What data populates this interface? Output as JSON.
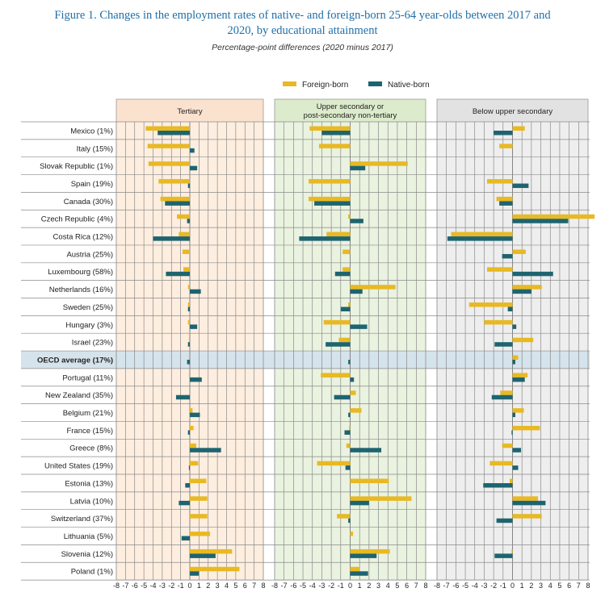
{
  "figure": {
    "title_line1": "Figure 1. Changes in the employment rates of native- and foreign-born 25-64 year-olds between 2017 and",
    "title_line2": "2020, by educational attainment",
    "subtitle": "Percentage-point differences (2020 minus 2017)"
  },
  "colors": {
    "foreign": "#e8b923",
    "native": "#1e6470",
    "panel_tertiary": "#fdeee0",
    "panel_upper": "#eaf2e0",
    "panel_below": "#eeeeee",
    "header_tertiary": "#fbe2cf",
    "header_upper": "#dcebcb",
    "header_below": "#e2e2e2",
    "oecd_row": "#d5e3ec"
  },
  "chart_data": {
    "type": "bar",
    "orientation": "horizontal",
    "title": "Figure 1. Changes in the employment rates of native- and foreign-born 25-64 year-olds between 2017 and 2020, by educational attainment",
    "subtitle": "Percentage-point differences (2020 minus 2017)",
    "legend": [
      "Foreign-born",
      "Native-born"
    ],
    "legend_position": "top-right",
    "xlim": [
      -8,
      8
    ],
    "x_ticks": [
      "-8",
      "-7",
      "-6",
      "-5",
      "-4",
      "-3",
      "-2",
      "-1",
      "0",
      "1",
      "2",
      "3",
      "4",
      "5",
      "6",
      "7",
      "8"
    ],
    "categories": [
      "Mexico (1%)",
      "Italy (15%)",
      "Slovak Republic (1%)",
      "Spain (19%)",
      "Canada (30%)",
      "Czech Republic (4%)",
      "Costa Rica (12%)",
      "Austria (25%)",
      "Luxembourg (58%)",
      "Netherlands (16%)",
      "Sweden (25%)",
      "Hungary (3%)",
      "Israel (23%)",
      "OECD average (17%)",
      "Portugal (11%)",
      "New Zealand (35%)",
      "Belgium (21%)",
      "France (15%)",
      "Greece (8%)",
      "United States (19%)",
      "Estonia (13%)",
      "Latvia (10%)",
      "Switzerland (37%)",
      "Lithuania (5%)",
      "Slovenia (12%)",
      "Poland (1%)"
    ],
    "highlight_category": "OECD average (17%)",
    "panels": [
      {
        "name": "Tertiary",
        "foreign": [
          -4.8,
          -4.6,
          -4.5,
          -3.4,
          -3.2,
          -1.4,
          -1.2,
          -0.8,
          -0.7,
          -0.2,
          -0.2,
          -0.2,
          -0.1,
          -0.1,
          -0.1,
          0.0,
          0.3,
          0.4,
          0.7,
          0.9,
          1.8,
          1.9,
          1.9,
          2.2,
          4.6,
          5.4
        ],
        "native": [
          -3.5,
          0.5,
          0.8,
          -0.2,
          -2.7,
          -0.3,
          -4.0,
          0.0,
          -2.6,
          1.2,
          -0.2,
          0.8,
          -0.2,
          -0.3,
          1.3,
          -1.5,
          1.1,
          -0.2,
          3.4,
          -0.1,
          -0.5,
          -1.2,
          0.0,
          -0.9,
          2.8,
          1.0
        ]
      },
      {
        "name": "Upper secondary or post-secondary non-tertiary",
        "name_line1": "Upper secondary or",
        "name_line2": "post-secondary non-tertiary",
        "foreign": [
          -4.3,
          -3.3,
          6.1,
          -4.4,
          -4.4,
          -0.2,
          -2.5,
          -0.8,
          -0.8,
          4.8,
          -0.2,
          -2.8,
          -1.2,
          0.0,
          -3.1,
          0.6,
          1.2,
          -0.1,
          -0.4,
          -3.5,
          4.1,
          6.5,
          -1.4,
          0.3,
          4.2,
          1.0
        ],
        "native": [
          -3.0,
          0.0,
          1.6,
          0.0,
          -3.8,
          1.4,
          -5.4,
          0.0,
          -1.6,
          1.3,
          -1.0,
          1.8,
          -2.6,
          -0.2,
          0.4,
          -1.7,
          -0.2,
          -0.6,
          3.3,
          -0.5,
          0.0,
          2.0,
          -0.2,
          0.0,
          2.8,
          1.9
        ]
      },
      {
        "name": "Below upper secondary",
        "foreign": [
          1.3,
          -1.4,
          0.0,
          -2.7,
          -1.7,
          8.7,
          -6.5,
          1.4,
          -2.7,
          3.1,
          -4.6,
          -3.0,
          2.2,
          0.6,
          1.6,
          -1.3,
          1.2,
          2.9,
          -1.1,
          -2.4,
          -0.3,
          2.7,
          3.1,
          0.0,
          -0.1,
          0.0
        ],
        "native": [
          -2.0,
          0.0,
          0.0,
          1.7,
          -1.4,
          5.9,
          -6.9,
          -1.1,
          4.3,
          2.0,
          -0.5,
          0.4,
          -1.9,
          0.3,
          1.3,
          -2.2,
          0.3,
          -0.1,
          0.9,
          0.6,
          -3.1,
          3.5,
          -1.7,
          0.0,
          -1.9,
          0.0
        ]
      }
    ]
  }
}
